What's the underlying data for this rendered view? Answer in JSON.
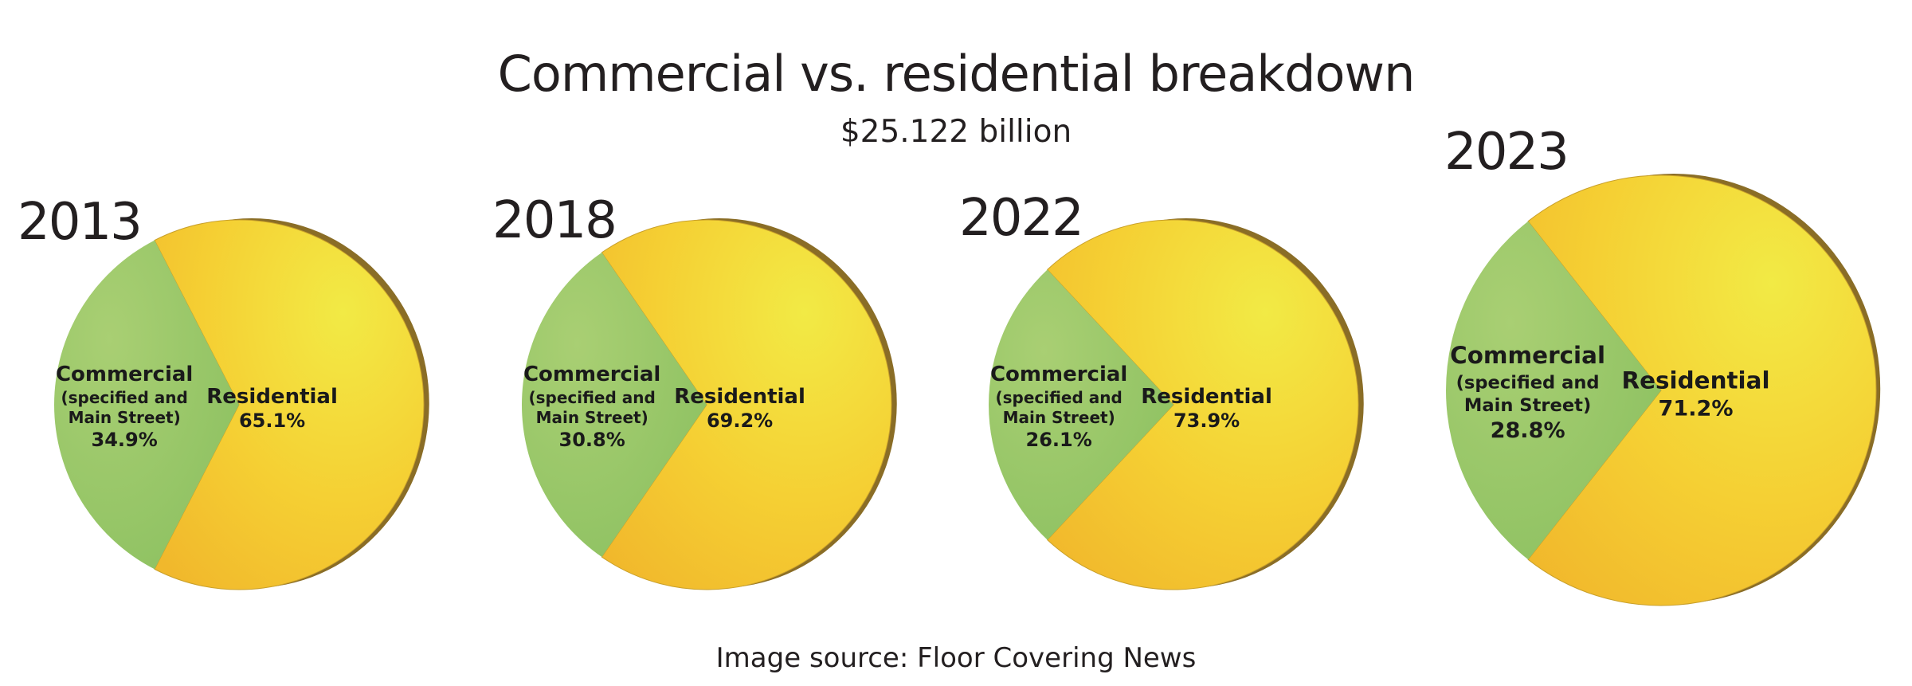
{
  "chart_title": "Commercial vs. residential breakdown",
  "chart_subtitle": "$25.122 billion",
  "source": "Image source: Floor Covering News",
  "colors": {
    "commercial": "#9dc96a",
    "residential": "#f6c72f",
    "shadow": "#8a6d26"
  },
  "chart_data": [
    {
      "type": "pie",
      "year": "2013",
      "slices": [
        {
          "name": "Commercial",
          "sub": [
            "(specified and",
            "Main Street)"
          ],
          "value": 34.9,
          "label": "34.9%"
        },
        {
          "name": "Residential",
          "sub": [],
          "value": 65.1,
          "label": "65.1%"
        }
      ]
    },
    {
      "type": "pie",
      "year": "2018",
      "slices": [
        {
          "name": "Commercial",
          "sub": [
            "(specified and",
            "Main Street)"
          ],
          "value": 30.8,
          "label": "30.8%"
        },
        {
          "name": "Residential",
          "sub": [],
          "value": 69.2,
          "label": "69.2%"
        }
      ]
    },
    {
      "type": "pie",
      "year": "2022",
      "slices": [
        {
          "name": "Commercial",
          "sub": [
            "(specified and",
            "Main Street)"
          ],
          "value": 26.1,
          "label": "26.1%"
        },
        {
          "name": "Residential",
          "sub": [],
          "value": 73.9,
          "label": "73.9%"
        }
      ]
    },
    {
      "type": "pie",
      "year": "2023",
      "slices": [
        {
          "name": "Commercial",
          "sub": [
            "(specified and",
            "Main Street)"
          ],
          "value": 28.8,
          "label": "28.8%"
        },
        {
          "name": "Residential",
          "sub": [],
          "value": 71.2,
          "label": "71.2%"
        }
      ]
    }
  ]
}
